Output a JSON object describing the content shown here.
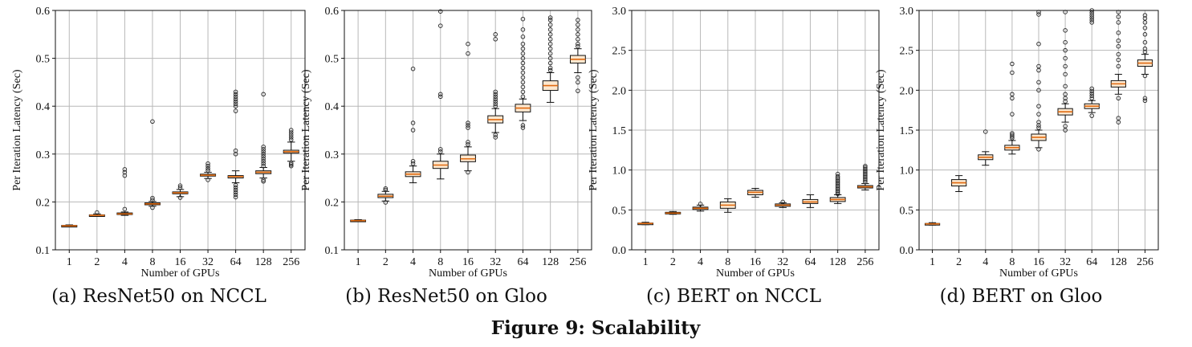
{
  "figure_caption": "Figure 9: Scalability",
  "colors": {
    "box_fill": "#fde8cf",
    "median": "#e06a10",
    "grid": "#b8b8b8",
    "outlier": "#222222"
  },
  "chart_data": [
    {
      "type": "boxplot",
      "caption": "(a) ResNet50 on NCCL",
      "xlabel": "Number of GPUs",
      "ylabel": "Per Iteration Latency (Sec)",
      "categories": [
        "1",
        "2",
        "4",
        "8",
        "16",
        "32",
        "64",
        "128",
        "256"
      ],
      "ylim": [
        0.1,
        0.6
      ],
      "yticks": [
        "0.1",
        "0.2",
        "0.3",
        "0.4",
        "0.5",
        "0.6"
      ],
      "grid": true,
      "boxes": [
        {
          "q1": 0.149,
          "median": 0.15,
          "q3": 0.151,
          "wlo": 0.148,
          "whi": 0.152,
          "outliers": []
        },
        {
          "q1": 0.171,
          "median": 0.172,
          "q3": 0.173,
          "wlo": 0.17,
          "whi": 0.175,
          "outliers": [
            0.178
          ]
        },
        {
          "q1": 0.174,
          "median": 0.175,
          "q3": 0.177,
          "wlo": 0.172,
          "whi": 0.179,
          "outliers": [
            0.185,
            0.255,
            0.262,
            0.268
          ]
        },
        {
          "q1": 0.194,
          "median": 0.196,
          "q3": 0.198,
          "wlo": 0.191,
          "whi": 0.201,
          "outliers": [
            0.188,
            0.204,
            0.208,
            0.368
          ]
        },
        {
          "q1": 0.217,
          "median": 0.219,
          "q3": 0.221,
          "wlo": 0.211,
          "whi": 0.226,
          "outliers": [
            0.209,
            0.23,
            0.234
          ]
        },
        {
          "q1": 0.254,
          "median": 0.256,
          "q3": 0.258,
          "wlo": 0.249,
          "whi": 0.262,
          "outliers": [
            0.246,
            0.266,
            0.27,
            0.275,
            0.28
          ]
        },
        {
          "q1": 0.25,
          "median": 0.253,
          "q3": 0.255,
          "wlo": 0.24,
          "whi": 0.265,
          "outliers": [
            0.21,
            0.215,
            0.22,
            0.225,
            0.23,
            0.235,
            0.3,
            0.307,
            0.39,
            0.4,
            0.405,
            0.41,
            0.415,
            0.42,
            0.425,
            0.43
          ]
        },
        {
          "q1": 0.259,
          "median": 0.262,
          "q3": 0.265,
          "wlo": 0.25,
          "whi": 0.272,
          "outliers": [
            0.243,
            0.246,
            0.275,
            0.28,
            0.285,
            0.29,
            0.295,
            0.3,
            0.305,
            0.31,
            0.315,
            0.425
          ]
        },
        {
          "q1": 0.302,
          "median": 0.305,
          "q3": 0.308,
          "wlo": 0.285,
          "whi": 0.325,
          "outliers": [
            0.275,
            0.278,
            0.281,
            0.33,
            0.335,
            0.34,
            0.345,
            0.35
          ]
        }
      ]
    },
    {
      "type": "boxplot",
      "caption": "(b) ResNet50 on Gloo",
      "xlabel": "Number of GPUs",
      "ylabel": "Per Iteration Latency (Sec)",
      "categories": [
        "1",
        "2",
        "4",
        "8",
        "16",
        "32",
        "64",
        "128",
        "256"
      ],
      "ylim": [
        0.1,
        0.6
      ],
      "yticks": [
        "0.1",
        "0.2",
        "0.3",
        "0.4",
        "0.5",
        "0.6"
      ],
      "grid": true,
      "boxes": [
        {
          "q1": 0.16,
          "median": 0.161,
          "q3": 0.162,
          "wlo": 0.159,
          "whi": 0.163,
          "outliers": []
        },
        {
          "q1": 0.209,
          "median": 0.212,
          "q3": 0.216,
          "wlo": 0.202,
          "whi": 0.222,
          "outliers": [
            0.199,
            0.225,
            0.228
          ]
        },
        {
          "q1": 0.253,
          "median": 0.258,
          "q3": 0.263,
          "wlo": 0.24,
          "whi": 0.275,
          "outliers": [
            0.28,
            0.285,
            0.35,
            0.365,
            0.478
          ]
        },
        {
          "q1": 0.27,
          "median": 0.277,
          "q3": 0.285,
          "wlo": 0.248,
          "whi": 0.3,
          "outliers": [
            0.305,
            0.31,
            0.42,
            0.425,
            0.568,
            0.598
          ]
        },
        {
          "q1": 0.284,
          "median": 0.29,
          "q3": 0.298,
          "wlo": 0.265,
          "whi": 0.315,
          "outliers": [
            0.262,
            0.32,
            0.325,
            0.355,
            0.36,
            0.365,
            0.51,
            0.53
          ]
        },
        {
          "q1": 0.365,
          "median": 0.372,
          "q3": 0.38,
          "wlo": 0.345,
          "whi": 0.395,
          "outliers": [
            0.335,
            0.34,
            0.4,
            0.405,
            0.41,
            0.415,
            0.42,
            0.425,
            0.43,
            0.54,
            0.55
          ]
        },
        {
          "q1": 0.388,
          "median": 0.396,
          "q3": 0.404,
          "wlo": 0.37,
          "whi": 0.415,
          "outliers": [
            0.355,
            0.36,
            0.42,
            0.43,
            0.44,
            0.45,
            0.46,
            0.47,
            0.48,
            0.49,
            0.5,
            0.51,
            0.52,
            0.53,
            0.545,
            0.56,
            0.582
          ]
        },
        {
          "q1": 0.433,
          "median": 0.443,
          "q3": 0.453,
          "wlo": 0.408,
          "whi": 0.47,
          "outliers": [
            0.475,
            0.48,
            0.49,
            0.5,
            0.51,
            0.52,
            0.53,
            0.54,
            0.55,
            0.56,
            0.57,
            0.58,
            0.585
          ]
        },
        {
          "q1": 0.49,
          "median": 0.498,
          "q3": 0.506,
          "wlo": 0.47,
          "whi": 0.52,
          "outliers": [
            0.432,
            0.45,
            0.46,
            0.525,
            0.53,
            0.54,
            0.55,
            0.56,
            0.57,
            0.58
          ]
        }
      ]
    },
    {
      "type": "boxplot",
      "caption": "(c) BERT on NCCL",
      "xlabel": "Number of GPUs",
      "ylabel": "Per Iteration Latency (Sec)",
      "categories": [
        "1",
        "2",
        "4",
        "8",
        "16",
        "32",
        "64",
        "128",
        "256"
      ],
      "ylim": [
        0.0,
        3.0
      ],
      "yticks": [
        "0.0",
        "0.5",
        "1.0",
        "1.5",
        "2.0",
        "2.5",
        "3.0"
      ],
      "grid": true,
      "boxes": [
        {
          "q1": 0.325,
          "median": 0.33,
          "q3": 0.335,
          "wlo": 0.315,
          "whi": 0.345,
          "outliers": []
        },
        {
          "q1": 0.455,
          "median": 0.46,
          "q3": 0.47,
          "wlo": 0.445,
          "whi": 0.48,
          "outliers": []
        },
        {
          "q1": 0.505,
          "median": 0.52,
          "q3": 0.535,
          "wlo": 0.485,
          "whi": 0.56,
          "outliers": [
            0.575
          ]
        },
        {
          "q1": 0.52,
          "median": 0.56,
          "q3": 0.6,
          "wlo": 0.47,
          "whi": 0.64,
          "outliers": []
        },
        {
          "q1": 0.69,
          "median": 0.72,
          "q3": 0.745,
          "wlo": 0.66,
          "whi": 0.77,
          "outliers": []
        },
        {
          "q1": 0.545,
          "median": 0.56,
          "q3": 0.575,
          "wlo": 0.53,
          "whi": 0.59,
          "outliers": [
            0.6
          ]
        },
        {
          "q1": 0.58,
          "median": 0.6,
          "q3": 0.63,
          "wlo": 0.53,
          "whi": 0.69,
          "outliers": []
        },
        {
          "q1": 0.605,
          "median": 0.63,
          "q3": 0.655,
          "wlo": 0.58,
          "whi": 0.69,
          "outliers": [
            0.7,
            0.72,
            0.74,
            0.76,
            0.78,
            0.8,
            0.82,
            0.84,
            0.86,
            0.88,
            0.9,
            0.92,
            0.95
          ]
        },
        {
          "q1": 0.775,
          "median": 0.79,
          "q3": 0.805,
          "wlo": 0.75,
          "whi": 0.83,
          "outliers": [
            0.85,
            0.87,
            0.89,
            0.91,
            0.93,
            0.95,
            0.97,
            0.99,
            1.01,
            1.03,
            1.05
          ]
        }
      ]
    },
    {
      "type": "boxplot",
      "caption": "(d) BERT on Gloo",
      "xlabel": "Number of GPUs",
      "ylabel": "Per Iteration Latency (Sec)",
      "categories": [
        "1",
        "2",
        "4",
        "8",
        "16",
        "32",
        "64",
        "128",
        "256"
      ],
      "ylim": [
        0.0,
        3.0
      ],
      "yticks": [
        "0.0",
        "0.5",
        "1.0",
        "1.5",
        "2.0",
        "2.5",
        "3.0"
      ],
      "grid": true,
      "boxes": [
        {
          "q1": 0.32,
          "median": 0.325,
          "q3": 0.33,
          "wlo": 0.31,
          "whi": 0.34,
          "outliers": []
        },
        {
          "q1": 0.8,
          "median": 0.84,
          "q3": 0.88,
          "wlo": 0.73,
          "whi": 0.93,
          "outliers": []
        },
        {
          "q1": 1.13,
          "median": 1.16,
          "q3": 1.19,
          "wlo": 1.06,
          "whi": 1.23,
          "outliers": [
            1.48
          ]
        },
        {
          "q1": 1.25,
          "median": 1.28,
          "q3": 1.31,
          "wlo": 1.2,
          "whi": 1.37,
          "outliers": [
            1.4,
            1.42,
            1.44,
            1.46,
            1.7,
            1.9,
            1.95,
            2.22,
            2.33
          ]
        },
        {
          "q1": 1.37,
          "median": 1.41,
          "q3": 1.45,
          "wlo": 1.28,
          "whi": 1.5,
          "outliers": [
            1.26,
            1.53,
            1.56,
            1.6,
            1.7,
            1.8,
            2.0,
            2.1,
            2.25,
            2.3,
            2.58,
            2.95,
            2.98
          ]
        },
        {
          "q1": 1.69,
          "median": 1.73,
          "q3": 1.77,
          "wlo": 1.6,
          "whi": 1.83,
          "outliers": [
            1.5,
            1.55,
            1.86,
            1.9,
            1.95,
            2.05,
            2.2,
            2.3,
            2.4,
            2.5,
            2.6,
            2.75,
            2.98
          ]
        },
        {
          "q1": 1.77,
          "median": 1.8,
          "q3": 1.83,
          "wlo": 1.72,
          "whi": 1.87,
          "outliers": [
            1.68,
            1.9,
            1.93,
            1.96,
            1.99,
            2.02,
            2.85,
            2.88,
            2.91,
            2.94,
            2.97,
            3.0
          ]
        },
        {
          "q1": 2.04,
          "median": 2.08,
          "q3": 2.12,
          "wlo": 1.95,
          "whi": 2.2,
          "outliers": [
            1.6,
            1.65,
            1.9,
            2.3,
            2.38,
            2.45,
            2.55,
            2.62,
            2.72,
            2.85,
            2.92,
            2.98
          ]
        },
        {
          "q1": 2.3,
          "median": 2.34,
          "q3": 2.38,
          "wlo": 2.2,
          "whi": 2.45,
          "outliers": [
            1.87,
            1.9,
            2.18,
            2.48,
            2.52,
            2.6,
            2.7,
            2.78,
            2.85,
            2.9,
            2.94
          ]
        }
      ]
    }
  ]
}
